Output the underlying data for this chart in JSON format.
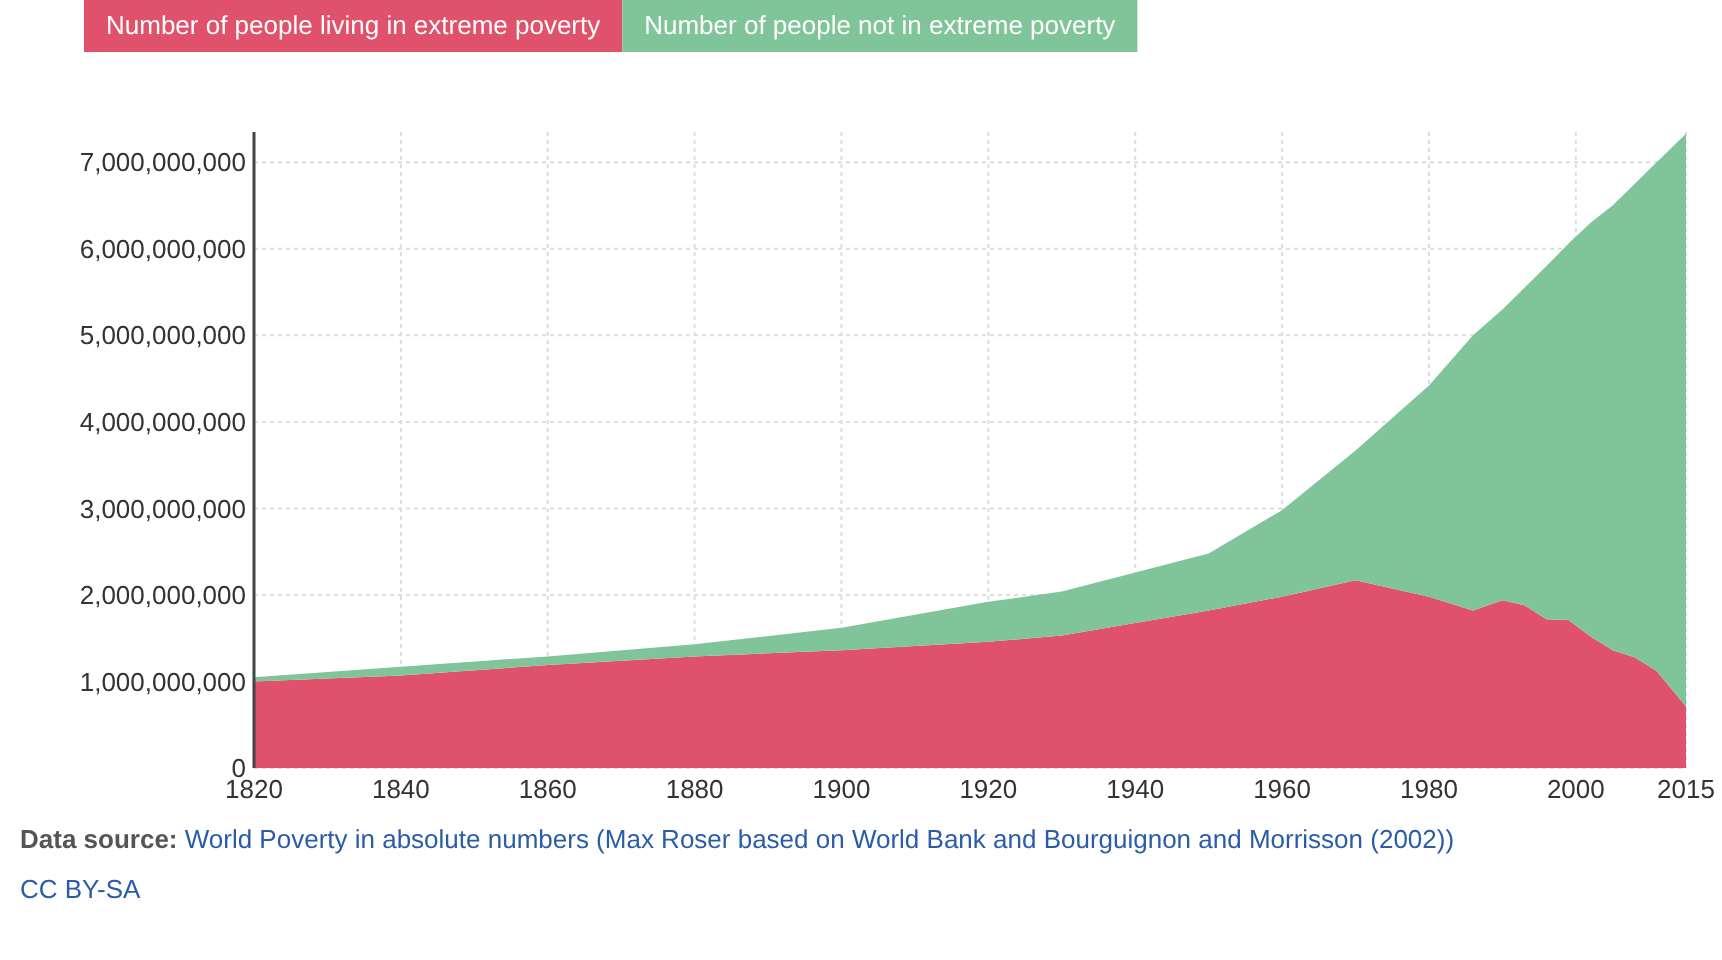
{
  "chart_data": {
    "type": "area",
    "stacked": true,
    "x": [
      1820,
      1840,
      1860,
      1880,
      1900,
      1920,
      1930,
      1950,
      1960,
      1970,
      1980,
      1986,
      1990,
      1993,
      1996,
      1999,
      2002,
      2005,
      2008,
      2011,
      2015
    ],
    "series": [
      {
        "name": "Number of people living in extreme poverty",
        "color": "#e0526c",
        "values": [
          1000000000,
          1070000000,
          1190000000,
          1290000000,
          1360000000,
          1460000000,
          1530000000,
          1820000000,
          1980000000,
          2170000000,
          1980000000,
          1820000000,
          1940000000,
          1880000000,
          1720000000,
          1710000000,
          1520000000,
          1360000000,
          1280000000,
          1120000000,
          710000000
        ]
      },
      {
        "name": "Number of people not in extreme poverty",
        "color": "#80c49a",
        "values": [
          50000000,
          100000000,
          100000000,
          140000000,
          260000000,
          460000000,
          510000000,
          660000000,
          1000000000,
          1500000000,
          2440000000,
          3180000000,
          3360000000,
          3670000000,
          4080000000,
          4350000000,
          4780000000,
          5140000000,
          5470000000,
          5880000000,
          6620000000
        ]
      }
    ],
    "xlim": [
      1820,
      2015
    ],
    "xticks": [
      1820,
      1840,
      1860,
      1880,
      1900,
      1920,
      1940,
      1960,
      1980,
      2000,
      2015
    ],
    "ylim": [
      0,
      7350000000
    ],
    "yticks": [
      0,
      {
        "value": 1000000000,
        "label": "1,000,000,000"
      },
      {
        "value": 2000000000,
        "label": "2,000,000,000"
      },
      {
        "value": 3000000000,
        "label": "3,000,000,000"
      },
      {
        "value": 4000000000,
        "label": "4,000,000,000"
      },
      {
        "value": 5000000000,
        "label": "5,000,000,000"
      },
      {
        "value": 6000000000,
        "label": "6,000,000,000"
      },
      {
        "value": 7000000000,
        "label": "7,000,000,000"
      }
    ],
    "grid": true,
    "legend": "top left",
    "annotations": [
      "Data source: World Poverty in absolute numbers (Max Roser based on World Bank and Bourguignon and Morrisson (2002))",
      "CC BY-SA"
    ]
  }
}
